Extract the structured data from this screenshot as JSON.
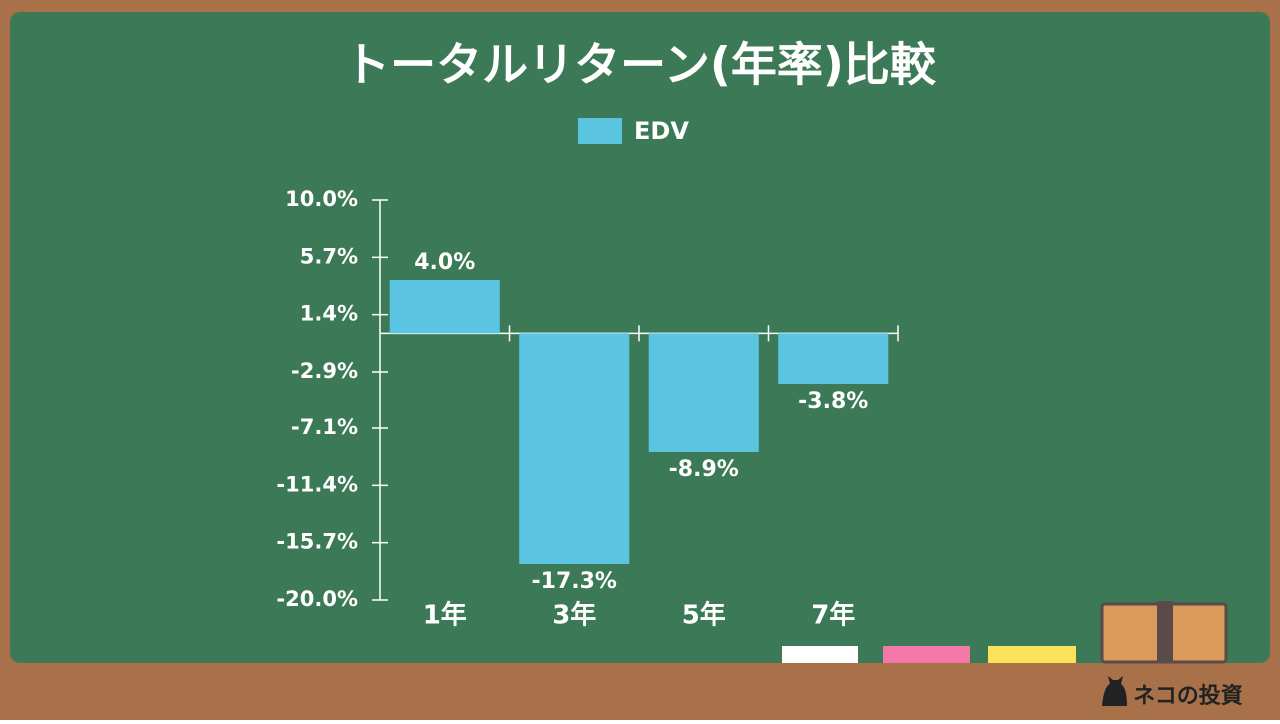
{
  "chart_data": {
    "type": "bar",
    "title": "トータルリターン(年率)比較",
    "categories": [
      "1年",
      "3年",
      "5年",
      "7年"
    ],
    "series": [
      {
        "name": "EDV",
        "color": "#5bc4e0",
        "values": [
          4.0,
          -17.3,
          -8.9,
          -3.8
        ],
        "value_labels": [
          "4.0%",
          "-17.3%",
          "-8.9%",
          "-3.8%"
        ]
      }
    ],
    "ylim": [
      -20,
      10
    ],
    "yticks": [
      {
        "value": 10,
        "label": "10.0%"
      },
      {
        "value": 5.7,
        "label": "5.7%"
      },
      {
        "value": 1.4,
        "label": "1.4%"
      },
      {
        "value": -2.9,
        "label": "-2.9%"
      },
      {
        "value": -7.1,
        "label": "-7.1%"
      },
      {
        "value": -11.4,
        "label": "-11.4%"
      },
      {
        "value": -15.7,
        "label": "-15.7%"
      },
      {
        "value": -20,
        "label": "-20.0%"
      }
    ],
    "grid": false,
    "legend": "top"
  },
  "watermark": "ネコの投資"
}
